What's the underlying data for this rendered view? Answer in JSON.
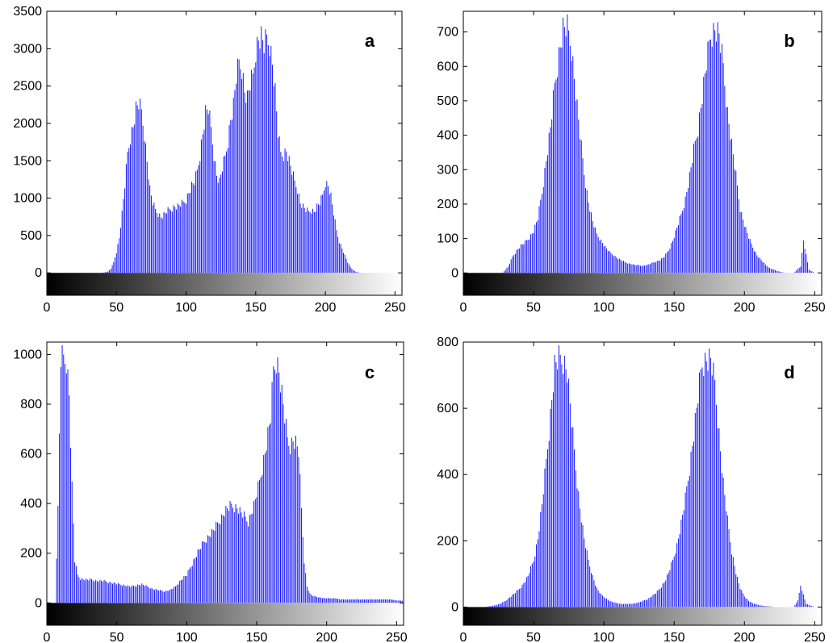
{
  "chart_data": [
    {
      "type": "bar",
      "panel_label": "a",
      "xlim": [
        0,
        255
      ],
      "ylim": [
        -300,
        3500
      ],
      "xticks": [
        0,
        50,
        100,
        150,
        200,
        250
      ],
      "xtick_labels": [
        "0",
        "50",
        "100",
        "150",
        "200",
        "250"
      ],
      "yticks": [
        0,
        500,
        1000,
        1500,
        2000,
        2500,
        3000,
        3500
      ],
      "ytick_labels": [
        "0",
        "500",
        "1000",
        "1500",
        "2000",
        "2500",
        "3000",
        "3500"
      ],
      "colorbar": "grayscale 0-255",
      "grid": false,
      "bar_color": "#0000ff",
      "x": [
        40,
        44,
        46,
        48,
        50,
        52,
        54,
        56,
        58,
        60,
        62,
        64,
        66,
        68,
        70,
        72,
        74,
        76,
        78,
        80,
        82,
        84,
        86,
        88,
        90,
        92,
        94,
        96,
        98,
        100,
        102,
        104,
        106,
        108,
        110,
        112,
        114,
        116,
        118,
        120,
        122,
        124,
        126,
        128,
        130,
        132,
        134,
        136,
        138,
        140,
        142,
        144,
        146,
        148,
        150,
        152,
        154,
        156,
        158,
        160,
        162,
        164,
        166,
        168,
        170,
        172,
        174,
        176,
        178,
        180,
        182,
        184,
        186,
        188,
        190,
        192,
        194,
        196,
        198,
        200,
        202,
        204,
        206,
        208,
        210,
        212,
        214,
        216,
        218,
        220,
        222,
        224,
        226,
        228,
        230
      ],
      "values": [
        0,
        20,
        60,
        150,
        300,
        500,
        850,
        1250,
        1700,
        1950,
        2100,
        2350,
        2420,
        2300,
        2000,
        1600,
        1200,
        1000,
        900,
        850,
        800,
        830,
        880,
        900,
        930,
        950,
        950,
        980,
        1000,
        1050,
        1150,
        1250,
        1300,
        1450,
        1700,
        2000,
        2300,
        2350,
        2050,
        1700,
        1400,
        1300,
        1500,
        1650,
        1900,
        2200,
        2400,
        2800,
        3000,
        2950,
        2600,
        2500,
        2700,
        2800,
        3200,
        3350,
        3380,
        3250,
        3350,
        3300,
        3000,
        2600,
        2000,
        1700,
        1700,
        1750,
        1600,
        1450,
        1300,
        1200,
        1000,
        950,
        900,
        870,
        900,
        880,
        950,
        1000,
        1100,
        1300,
        1250,
        1100,
        850,
        600,
        450,
        350,
        250,
        150,
        80,
        40,
        15,
        5,
        0,
        0,
        0
      ]
    },
    {
      "type": "bar",
      "panel_label": "b",
      "xlim": [
        0,
        255
      ],
      "ylim": [
        -65,
        760
      ],
      "xticks": [
        0,
        50,
        100,
        150,
        200,
        250
      ],
      "xtick_labels": [
        "0",
        "50",
        "100",
        "150",
        "200",
        "250"
      ],
      "yticks": [
        0,
        100,
        200,
        300,
        400,
        500,
        600,
        700
      ],
      "ytick_labels": [
        "0",
        "100",
        "200",
        "300",
        "400",
        "500",
        "600",
        "700"
      ],
      "colorbar": "grayscale 0-255",
      "grid": false,
      "bar_color": "#0000ff",
      "x": [
        0,
        10,
        20,
        28,
        32,
        35,
        38,
        41,
        44,
        47,
        50,
        53,
        56,
        59,
        62,
        65,
        68,
        71,
        74,
        77,
        80,
        83,
        86,
        89,
        92,
        95,
        98,
        101,
        104,
        107,
        110,
        113,
        116,
        119,
        122,
        125,
        128,
        131,
        134,
        137,
        140,
        143,
        146,
        149,
        152,
        155,
        158,
        161,
        164,
        167,
        170,
        173,
        176,
        179,
        182,
        185,
        188,
        191,
        194,
        197,
        200,
        203,
        206,
        209,
        212,
        215,
        218,
        221,
        224,
        227,
        230,
        235,
        240,
        242,
        244,
        246,
        250,
        255
      ],
      "values": [
        0,
        0,
        0,
        0,
        20,
        50,
        70,
        85,
        95,
        110,
        130,
        170,
        250,
        350,
        450,
        580,
        680,
        760,
        760,
        700,
        560,
        430,
        310,
        220,
        160,
        120,
        100,
        80,
        65,
        55,
        45,
        38,
        32,
        28,
        25,
        23,
        22,
        25,
        30,
        35,
        40,
        50,
        70,
        100,
        140,
        180,
        230,
        300,
        380,
        450,
        550,
        650,
        740,
        760,
        740,
        640,
        500,
        400,
        300,
        200,
        150,
        110,
        80,
        55,
        40,
        25,
        15,
        10,
        5,
        2,
        0,
        0,
        20,
        100,
        55,
        10,
        0,
        0
      ]
    },
    {
      "type": "bar",
      "panel_label": "c",
      "xlim": [
        0,
        255
      ],
      "ylim": [
        -90,
        1050
      ],
      "xticks": [
        0,
        50,
        100,
        150,
        200,
        250
      ],
      "xtick_labels": [
        "0",
        "50",
        "100",
        "150",
        "200",
        "250"
      ],
      "yticks": [
        0,
        200,
        400,
        600,
        800,
        1000
      ],
      "ytick_labels": [
        "0",
        "200",
        "400",
        "600",
        "800",
        "1000"
      ],
      "colorbar": "grayscale 0-255",
      "grid": false,
      "bar_color": "#0000ff",
      "x": [
        6,
        8,
        10,
        12,
        14,
        16,
        18,
        20,
        22,
        24,
        28,
        32,
        36,
        40,
        44,
        48,
        52,
        56,
        60,
        64,
        68,
        72,
        76,
        80,
        84,
        88,
        92,
        96,
        100,
        104,
        108,
        112,
        116,
        120,
        124,
        128,
        132,
        136,
        140,
        144,
        148,
        152,
        156,
        160,
        162,
        164,
        166,
        168,
        170,
        172,
        174,
        176,
        178,
        180,
        182,
        184,
        186,
        188,
        190,
        194,
        198,
        202,
        206,
        210,
        214,
        218,
        222,
        226,
        230,
        234,
        238,
        242,
        246,
        250,
        254
      ],
      "values": [
        0,
        400,
        1050,
        1050,
        1050,
        900,
        500,
        180,
        120,
        105,
        100,
        100,
        95,
        95,
        90,
        85,
        80,
        75,
        70,
        75,
        80,
        70,
        60,
        55,
        50,
        55,
        70,
        100,
        120,
        170,
        220,
        260,
        290,
        320,
        360,
        400,
        420,
        410,
        380,
        350,
        420,
        520,
        650,
        800,
        1000,
        1050,
        1000,
        900,
        800,
        700,
        680,
        700,
        690,
        650,
        400,
        180,
        70,
        40,
        30,
        25,
        20,
        20,
        20,
        15,
        15,
        15,
        15,
        15,
        15,
        15,
        15,
        15,
        15,
        10,
        10
      ]
    },
    {
      "type": "bar",
      "panel_label": "d",
      "xlim": [
        0,
        255
      ],
      "ylim": [
        -55,
        800
      ],
      "xticks": [
        0,
        50,
        100,
        150,
        200,
        250
      ],
      "xtick_labels": [
        "0",
        "50",
        "100",
        "150",
        "200",
        "250"
      ],
      "yticks": [
        0,
        200,
        400,
        600,
        800
      ],
      "ytick_labels": [
        "0",
        "200",
        "400",
        "600",
        "800"
      ],
      "colorbar": "grayscale 0-255",
      "grid": false,
      "bar_color": "#0000ff",
      "x": [
        0,
        15,
        22,
        26,
        30,
        34,
        38,
        42,
        46,
        50,
        53,
        56,
        59,
        62,
        65,
        68,
        71,
        74,
        77,
        80,
        83,
        86,
        89,
        92,
        95,
        98,
        101,
        104,
        107,
        110,
        113,
        116,
        119,
        122,
        125,
        128,
        131,
        134,
        137,
        140,
        143,
        146,
        149,
        152,
        155,
        158,
        161,
        164,
        167,
        170,
        173,
        176,
        179,
        182,
        185,
        188,
        191,
        194,
        197,
        200,
        203,
        206,
        209,
        212,
        215,
        218,
        221,
        224,
        227,
        230,
        235,
        238,
        240,
        242,
        244,
        250,
        255
      ],
      "values": [
        0,
        0,
        5,
        10,
        20,
        35,
        50,
        70,
        100,
        150,
        220,
        330,
        470,
        620,
        780,
        800,
        800,
        760,
        600,
        450,
        320,
        220,
        150,
        100,
        60,
        40,
        30,
        20,
        15,
        12,
        10,
        10,
        10,
        12,
        15,
        20,
        25,
        35,
        45,
        60,
        80,
        110,
        150,
        200,
        270,
        350,
        450,
        560,
        680,
        790,
        800,
        800,
        720,
        560,
        400,
        280,
        180,
        110,
        60,
        35,
        20,
        12,
        8,
        5,
        3,
        2,
        0,
        0,
        0,
        0,
        0,
        20,
        70,
        40,
        10,
        0,
        0
      ]
    }
  ]
}
